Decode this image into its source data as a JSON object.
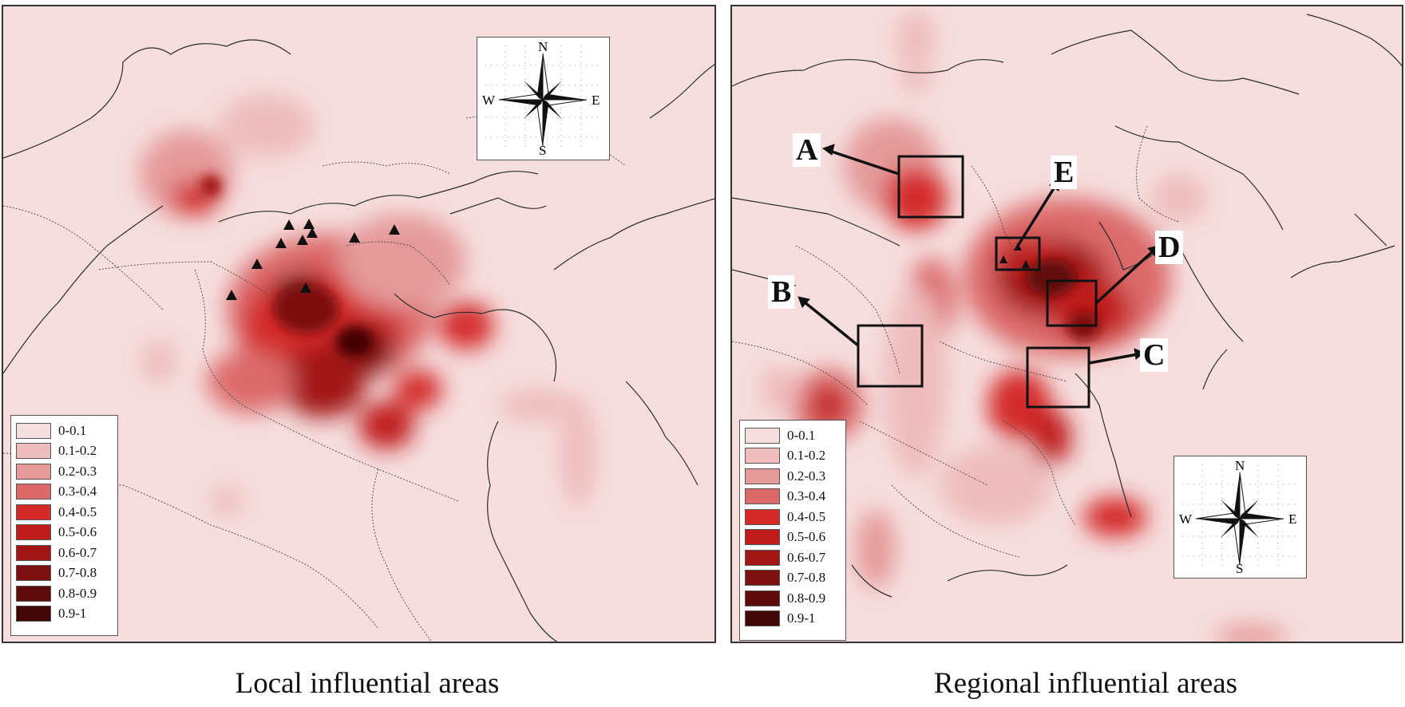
{
  "figure": {
    "left_panel": {
      "caption": "Local influential areas"
    },
    "right_panel": {
      "caption": "Regional influential areas",
      "region_labels": [
        "A",
        "B",
        "C",
        "D",
        "E"
      ]
    },
    "compass": {
      "n": "N",
      "s": "S",
      "e": "E",
      "w": "W"
    },
    "legend": {
      "items": [
        {
          "label": "0-0.1",
          "color": "#f4dede"
        },
        {
          "label": "0.1-0.2",
          "color": "#eebcbc"
        },
        {
          "label": "0.2-0.3",
          "color": "#e59a9a"
        },
        {
          "label": "0.3-0.4",
          "color": "#dc6a6a"
        },
        {
          "label": "0.4-0.5",
          "color": "#d42a2a"
        },
        {
          "label": "0.5-0.6",
          "color": "#c01c1c"
        },
        {
          "label": "0.6-0.7",
          "color": "#a31616"
        },
        {
          "label": "0.7-0.8",
          "color": "#7d1010"
        },
        {
          "label": "0.8-0.9",
          "color": "#5e0b0b"
        },
        {
          "label": "0.9-1",
          "color": "#420606"
        }
      ]
    }
  }
}
